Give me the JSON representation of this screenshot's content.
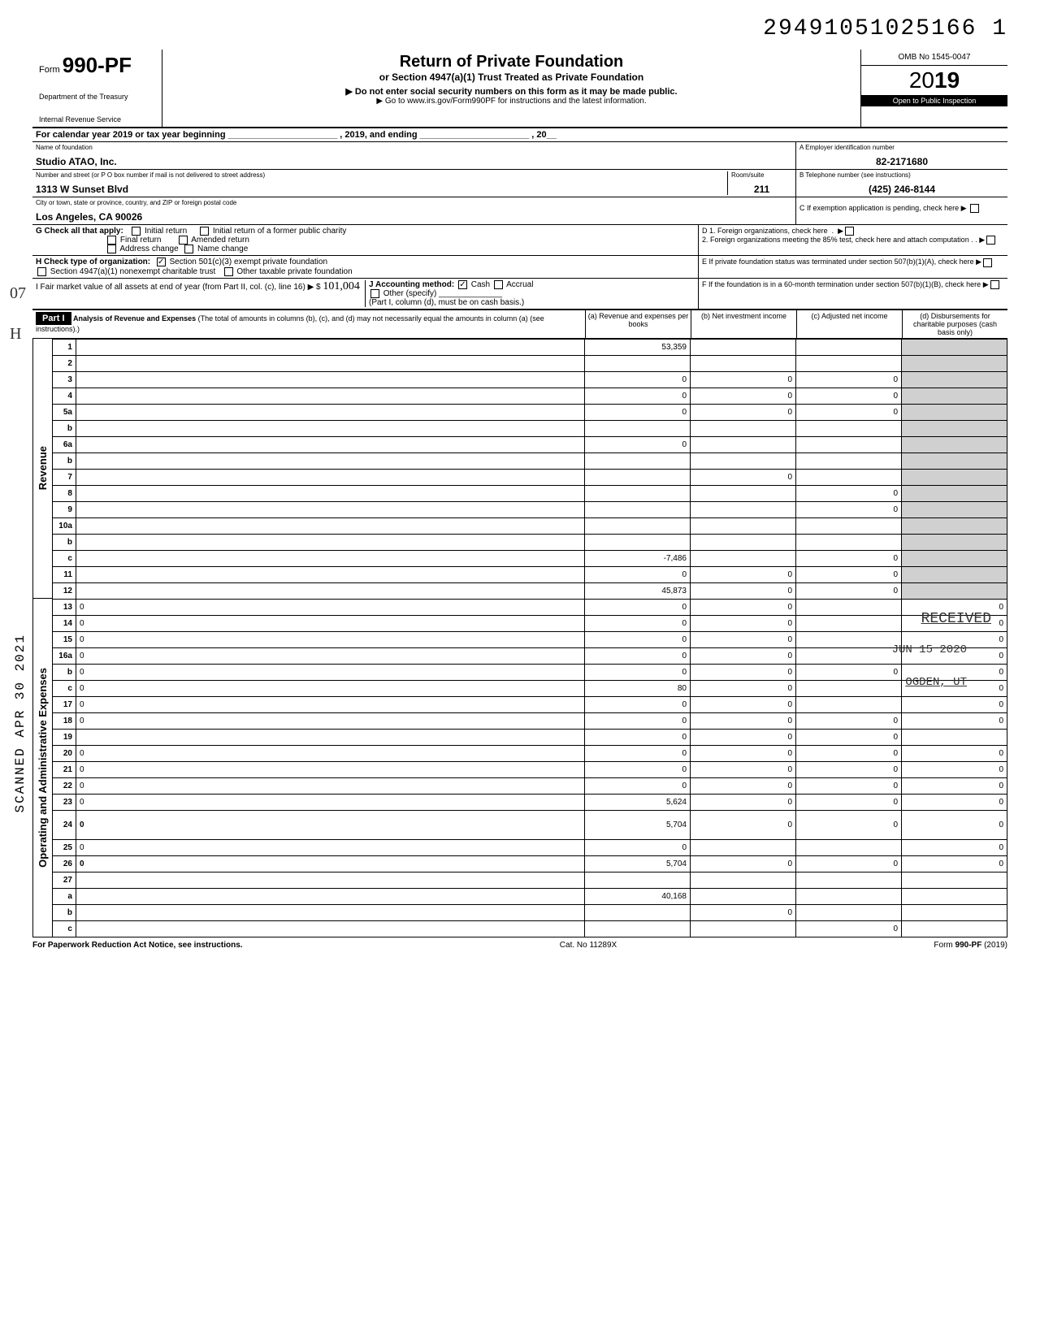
{
  "top_number": "29491051025166  1",
  "form": {
    "prefix": "Form",
    "number": "990-PF",
    "dept1": "Department of the Treasury",
    "dept2": "Internal Revenue Service"
  },
  "title": {
    "main": "Return of Private Foundation",
    "sub1": "or Section 4947(a)(1) Trust Treated as Private Foundation",
    "sub2": "▶ Do not enter social security numbers on this form as it may be made public.",
    "sub3": "▶ Go to www.irs.gov/Form990PF for instructions and the latest information."
  },
  "omb": "OMB No 1545-0047",
  "year_prefix": "20",
  "year_bold": "19",
  "inspect": "Open to Public Inspection",
  "cal_year": "For calendar year 2019 or tax year beginning ______________________ , 2019, and ending ______________________ , 20__",
  "name_label": "Name of foundation",
  "name": "Studio ATAO, Inc.",
  "addr_label": "Number and street (or P O box number if mail is not delivered to street address)",
  "addr": "1313 W Sunset Blvd",
  "room_label": "Room/suite",
  "room": "211",
  "city_label": "City or town, state or province, country, and ZIP or foreign postal code",
  "city": "Los Angeles, CA 90026",
  "ein_label": "A  Employer identification number",
  "ein": "82-2171680",
  "phone_label": "B  Telephone number (see instructions)",
  "phone": "(425) 246-8144",
  "c_label": "C  If exemption application is pending, check here ▶",
  "g_label": "G  Check all that apply:",
  "g_opts": [
    "Initial return",
    "Initial return of a former public charity",
    "Final return",
    "Amended return",
    "Address change",
    "Name change"
  ],
  "h_label": "H  Check type of organization:",
  "h_opts": [
    "Section 501(c)(3) exempt private foundation",
    "Section 4947(a)(1) nonexempt charitable trust",
    "Other taxable private foundation"
  ],
  "i_label": "I   Fair market value of all assets at end of year (from Part II, col. (c), line 16) ▶ $",
  "i_val": "101,004",
  "j_label": "J  Accounting method:",
  "j_opts": [
    "Cash",
    "Accrual",
    "Other (specify)"
  ],
  "j_note": "(Part I, column (d), must be on cash basis.)",
  "d_label": "D 1. Foreign organizations, check here",
  "d2_label": "2. Foreign organizations meeting the 85% test, check here and attach computation",
  "e_label": "E  If private foundation status was terminated under section 507(b)(1)(A), check here",
  "f_label": "F  If the foundation is in a 60-month termination under section 507(b)(1)(B), check here",
  "part1": "Part I",
  "analysis_title": "Analysis of Revenue and Expenses",
  "analysis_sub": "(The total of amounts in columns (b), (c), and (d) may not necessarily equal the amounts in column (a) (see instructions).)",
  "cols": {
    "a": "(a) Revenue and expenses per books",
    "b": "(b) Net investment income",
    "c": "(c) Adjusted net income",
    "d": "(d) Disbursements for charitable purposes (cash basis only)"
  },
  "side_labels": {
    "revenue": "Revenue",
    "expenses": "Operating and Administrative Expenses"
  },
  "lines": [
    {
      "n": "1",
      "d": "",
      "a": "53,359",
      "b": "",
      "c": ""
    },
    {
      "n": "2",
      "d": "",
      "a": "",
      "b": "",
      "c": ""
    },
    {
      "n": "3",
      "d": "",
      "a": "0",
      "b": "0",
      "c": "0"
    },
    {
      "n": "4",
      "d": "",
      "a": "0",
      "b": "0",
      "c": "0"
    },
    {
      "n": "5a",
      "d": "",
      "a": "0",
      "b": "0",
      "c": "0"
    },
    {
      "n": "b",
      "d": "",
      "a": "",
      "b": "",
      "c": ""
    },
    {
      "n": "6a",
      "d": "",
      "a": "0",
      "b": "",
      "c": ""
    },
    {
      "n": "b",
      "d": "",
      "a": "",
      "b": "",
      "c": ""
    },
    {
      "n": "7",
      "d": "",
      "a": "",
      "b": "0",
      "c": ""
    },
    {
      "n": "8",
      "d": "",
      "a": "",
      "b": "",
      "c": "0"
    },
    {
      "n": "9",
      "d": "",
      "a": "",
      "b": "",
      "c": "0"
    },
    {
      "n": "10a",
      "d": "",
      "a": "",
      "b": "",
      "c": ""
    },
    {
      "n": "b",
      "d": "",
      "a": "",
      "b": "",
      "c": ""
    },
    {
      "n": "c",
      "d": "",
      "a": "-7,486",
      "b": "",
      "c": "0"
    },
    {
      "n": "11",
      "d": "",
      "a": "0",
      "b": "0",
      "c": "0"
    },
    {
      "n": "12",
      "d": "",
      "a": "45,873",
      "b": "0",
      "c": "0",
      "bold": true
    },
    {
      "n": "13",
      "d": "0",
      "a": "0",
      "b": "0",
      "c": ""
    },
    {
      "n": "14",
      "d": "0",
      "a": "0",
      "b": "0",
      "c": ""
    },
    {
      "n": "15",
      "d": "0",
      "a": "0",
      "b": "0",
      "c": ""
    },
    {
      "n": "16a",
      "d": "0",
      "a": "0",
      "b": "0",
      "c": ""
    },
    {
      "n": "b",
      "d": "0",
      "a": "0",
      "b": "0",
      "c": "0"
    },
    {
      "n": "c",
      "d": "0",
      "a": "80",
      "b": "0",
      "c": ""
    },
    {
      "n": "17",
      "d": "0",
      "a": "0",
      "b": "0",
      "c": ""
    },
    {
      "n": "18",
      "d": "0",
      "a": "0",
      "b": "0",
      "c": "0"
    },
    {
      "n": "19",
      "d": "",
      "a": "0",
      "b": "0",
      "c": "0"
    },
    {
      "n": "20",
      "d": "0",
      "a": "0",
      "b": "0",
      "c": "0"
    },
    {
      "n": "21",
      "d": "0",
      "a": "0",
      "b": "0",
      "c": "0"
    },
    {
      "n": "22",
      "d": "0",
      "a": "0",
      "b": "0",
      "c": "0"
    },
    {
      "n": "23",
      "d": "0",
      "a": "5,624",
      "b": "0",
      "c": "0"
    },
    {
      "n": "24",
      "d": "0",
      "a": "5,704",
      "b": "0",
      "c": "0",
      "bold": true,
      "tall": true
    },
    {
      "n": "25",
      "d": "0",
      "a": "0",
      "b": "",
      "c": ""
    },
    {
      "n": "26",
      "d": "0",
      "a": "5,704",
      "b": "0",
      "c": "0",
      "bold": true
    },
    {
      "n": "27",
      "d": "",
      "a": "",
      "b": "",
      "c": ""
    },
    {
      "n": "a",
      "d": "",
      "a": "40,168",
      "b": "",
      "c": "",
      "bold": true
    },
    {
      "n": "b",
      "d": "",
      "a": "",
      "b": "0",
      "c": "",
      "bold": true
    },
    {
      "n": "c",
      "d": "",
      "a": "",
      "b": "",
      "c": "0",
      "bold": true
    }
  ],
  "footer": {
    "left": "For Paperwork Reduction Act Notice, see instructions.",
    "center": "Cat. No  11289X",
    "right": "Form 990-PF (2019)"
  },
  "stamps": {
    "scanned": "SCANNED APR 30 2021",
    "received": "RECEIVED",
    "jun": "JUN 15 2020",
    "ogden": "OGDEN, UT"
  },
  "margin_marks": {
    "m1": "07",
    "m2": "H"
  }
}
